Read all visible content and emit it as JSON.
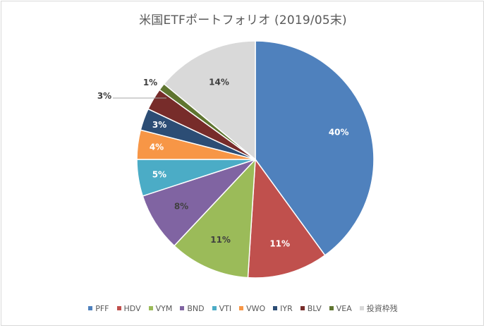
{
  "chart_data": {
    "type": "pie",
    "title": "米国ETFポートフォリオ (2019/05末)",
    "categories": [
      "PFF",
      "HDV",
      "VYM",
      "BND",
      "VTI",
      "VWO",
      "IYR",
      "BLV",
      "VEA",
      "投資枠残"
    ],
    "values": [
      40,
      11,
      11,
      8,
      5,
      4,
      3,
      3,
      1,
      14
    ],
    "data_labels": [
      "40%",
      "11%",
      "11%",
      "8%",
      "5%",
      "4%",
      "3%",
      "3%",
      "1%",
      "14%"
    ],
    "colors": [
      "#4f81bd",
      "#c0504d",
      "#9bbb59",
      "#8064a2",
      "#4bacc6",
      "#f79646",
      "#2c4d75",
      "#772c2a",
      "#5f7530",
      "#d9d9d9"
    ],
    "label_colors": [
      "#ffffff",
      "#ffffff",
      "#404040",
      "#404040",
      "#ffffff",
      "#ffffff",
      "#ffffff",
      "#404040",
      "#404040",
      "#404040"
    ],
    "legend_position": "bottom",
    "start_angle_deg": 0,
    "direction": "clockwise"
  }
}
